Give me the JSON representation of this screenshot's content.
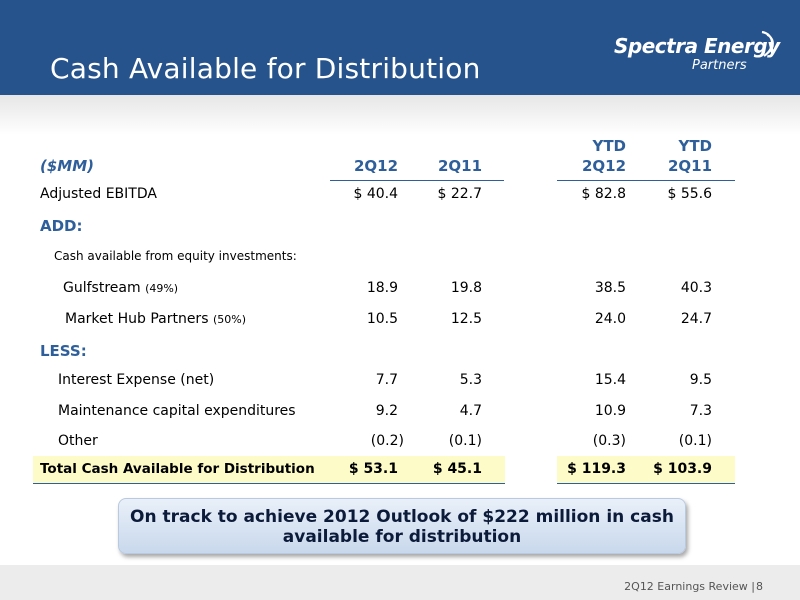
{
  "header": {
    "title": "Cash Available for Distribution",
    "logo_main": "Spectra Energy",
    "logo_sub": "Partners"
  },
  "table": {
    "unit_label": "($MM)",
    "columns": [
      "2Q12",
      "2Q11",
      "YTD 2Q12",
      "YTD 2Q11"
    ],
    "column_head": {
      "c1": "2Q12",
      "c2": "2Q11",
      "c3_top": "YTD",
      "c3_bottom": "2Q12",
      "c4_top": "YTD",
      "c4_bottom": "2Q11"
    },
    "rows": {
      "ebitda": {
        "label": "Adjusted EBITDA",
        "values": [
          "$  40.4",
          "$ 22.7",
          "$ 82.8",
          "$ 55.6"
        ]
      },
      "add": {
        "label": "ADD:"
      },
      "equity": {
        "label": "Cash available from equity investments:"
      },
      "gulfstream": {
        "label": "Gulfstream",
        "note": "(49%)",
        "values": [
          "18.9",
          "19.8",
          "38.5",
          "40.3"
        ]
      },
      "mhp": {
        "label": "Market Hub Partners",
        "note": "(50%)",
        "values": [
          "10.5",
          "12.5",
          "24.0",
          "24.7"
        ]
      },
      "less": {
        "label": "LESS:"
      },
      "interest": {
        "label": "Interest Expense (net)",
        "values": [
          "7.7",
          "5.3",
          "15.4",
          "9.5"
        ]
      },
      "maint": {
        "label": "Maintenance capital expenditures",
        "values": [
          "9.2",
          "4.7",
          "10.9",
          "7.3"
        ]
      },
      "other": {
        "label": "Other",
        "values": [
          "(0.2)",
          "(0.1)",
          "(0.3)",
          "(0.1)"
        ]
      },
      "total": {
        "label": "Total Cash Available for Distribution",
        "values": [
          "$  53.1",
          "$ 45.1",
          "$ 119.3",
          "$ 103.9"
        ]
      }
    }
  },
  "callout": {
    "line1": "On track to achieve 2012 Outlook of $222 million in cash",
    "line2": "available for distribution"
  },
  "footer": {
    "text": "2Q12 Earnings Review |",
    "page": "8"
  },
  "colors": {
    "header_bg": "#27538c",
    "accent_blue": "#2e5f9a",
    "total_highlight": "#fdfcc8"
  }
}
